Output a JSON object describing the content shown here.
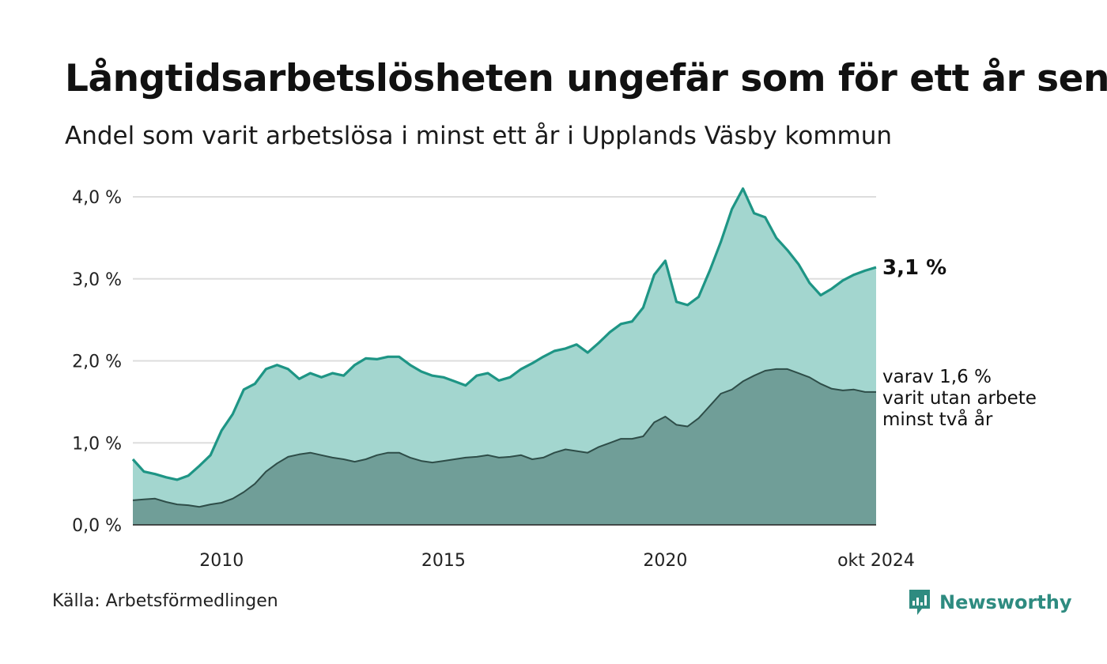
{
  "title": "Långtidsarbetslösheten ungefär som för ett år sen",
  "subtitle": "Andel som varit arbetslösa i minst ett år i Upplands Väsby kommun",
  "source": "Källa: Arbetsförmedlingen",
  "brand": {
    "name": "Newsworthy",
    "icon": "newsworthy-logo-icon"
  },
  "colors": {
    "long_term_line": "#1e9585",
    "long_term_fill": "#a3d6cf",
    "two_year_line": "#2e4d48",
    "two_year_fill": "#709e98",
    "grid": "#dddddd",
    "brand": "#2e8b80"
  },
  "chart_data": {
    "type": "area",
    "title": "Långtidsarbetslösheten ungefär som för ett år sen",
    "ylim": [
      0,
      4
    ],
    "yticks": [
      0,
      1,
      2,
      3,
      4
    ],
    "ytick_labels": [
      "0,0 %",
      "1,0 %",
      "2,0 %",
      "3,0 %",
      "4,0 %"
    ],
    "xlim": [
      2008.0,
      2024.75
    ],
    "xticks": [
      2010,
      2015,
      2020,
      2024.75
    ],
    "xtick_labels": [
      "2010",
      "2015",
      "2020",
      "okt 2024"
    ],
    "grid": true,
    "end_label": "3,1 %",
    "secondary_label_lines": [
      "varav 1,6 %",
      "varit utan arbete",
      "minst två år"
    ],
    "series": [
      {
        "name": "Arbetslösa minst ett år",
        "x": [
          2008.0,
          2008.25,
          2008.5,
          2008.75,
          2009.0,
          2009.25,
          2009.5,
          2009.75,
          2010.0,
          2010.25,
          2010.5,
          2010.75,
          2011.0,
          2011.25,
          2011.5,
          2011.75,
          2012.0,
          2012.25,
          2012.5,
          2012.75,
          2013.0,
          2013.25,
          2013.5,
          2013.75,
          2014.0,
          2014.25,
          2014.5,
          2014.75,
          2015.0,
          2015.25,
          2015.5,
          2015.75,
          2016.0,
          2016.25,
          2016.5,
          2016.75,
          2017.0,
          2017.25,
          2017.5,
          2017.75,
          2018.0,
          2018.25,
          2018.5,
          2018.75,
          2019.0,
          2019.25,
          2019.5,
          2019.75,
          2020.0,
          2020.25,
          2020.5,
          2020.75,
          2021.0,
          2021.25,
          2021.5,
          2021.75,
          2022.0,
          2022.25,
          2022.5,
          2022.75,
          2023.0,
          2023.25,
          2023.5,
          2023.75,
          2024.0,
          2024.25,
          2024.5,
          2024.75
        ],
        "values": [
          0.8,
          0.65,
          0.62,
          0.58,
          0.55,
          0.6,
          0.72,
          0.85,
          1.15,
          1.35,
          1.65,
          1.72,
          1.9,
          1.95,
          1.9,
          1.78,
          1.85,
          1.8,
          1.85,
          1.82,
          1.95,
          2.03,
          2.02,
          2.05,
          2.05,
          1.95,
          1.87,
          1.82,
          1.8,
          1.75,
          1.7,
          1.82,
          1.85,
          1.76,
          1.8,
          1.9,
          1.97,
          2.05,
          2.12,
          2.15,
          2.2,
          2.1,
          2.22,
          2.35,
          2.45,
          2.48,
          2.65,
          3.05,
          3.22,
          2.72,
          2.68,
          2.78,
          3.1,
          3.45,
          3.85,
          4.1,
          3.8,
          3.75,
          3.5,
          3.35,
          3.18,
          2.95,
          2.8,
          2.88,
          2.98,
          3.05,
          3.1,
          3.14
        ]
      },
      {
        "name": "varav minst två år",
        "x": [
          2008.0,
          2008.25,
          2008.5,
          2008.75,
          2009.0,
          2009.25,
          2009.5,
          2009.75,
          2010.0,
          2010.25,
          2010.5,
          2010.75,
          2011.0,
          2011.25,
          2011.5,
          2011.75,
          2012.0,
          2012.25,
          2012.5,
          2012.75,
          2013.0,
          2013.25,
          2013.5,
          2013.75,
          2014.0,
          2014.25,
          2014.5,
          2014.75,
          2015.0,
          2015.25,
          2015.5,
          2015.75,
          2016.0,
          2016.25,
          2016.5,
          2016.75,
          2017.0,
          2017.25,
          2017.5,
          2017.75,
          2018.0,
          2018.25,
          2018.5,
          2018.75,
          2019.0,
          2019.25,
          2019.5,
          2019.75,
          2020.0,
          2020.25,
          2020.5,
          2020.75,
          2021.0,
          2021.25,
          2021.5,
          2021.75,
          2022.0,
          2022.25,
          2022.5,
          2022.75,
          2023.0,
          2023.25,
          2023.5,
          2023.75,
          2024.0,
          2024.25,
          2024.5,
          2024.75
        ],
        "values": [
          0.3,
          0.31,
          0.32,
          0.28,
          0.25,
          0.24,
          0.22,
          0.25,
          0.27,
          0.32,
          0.4,
          0.5,
          0.65,
          0.75,
          0.83,
          0.86,
          0.88,
          0.85,
          0.82,
          0.8,
          0.77,
          0.8,
          0.85,
          0.88,
          0.88,
          0.82,
          0.78,
          0.76,
          0.78,
          0.8,
          0.82,
          0.83,
          0.85,
          0.82,
          0.83,
          0.85,
          0.8,
          0.82,
          0.88,
          0.92,
          0.9,
          0.88,
          0.95,
          1.0,
          1.05,
          1.05,
          1.08,
          1.25,
          1.32,
          1.22,
          1.2,
          1.3,
          1.45,
          1.6,
          1.65,
          1.75,
          1.82,
          1.88,
          1.9,
          1.9,
          1.85,
          1.8,
          1.72,
          1.66,
          1.64,
          1.65,
          1.62,
          1.62
        ]
      }
    ]
  }
}
